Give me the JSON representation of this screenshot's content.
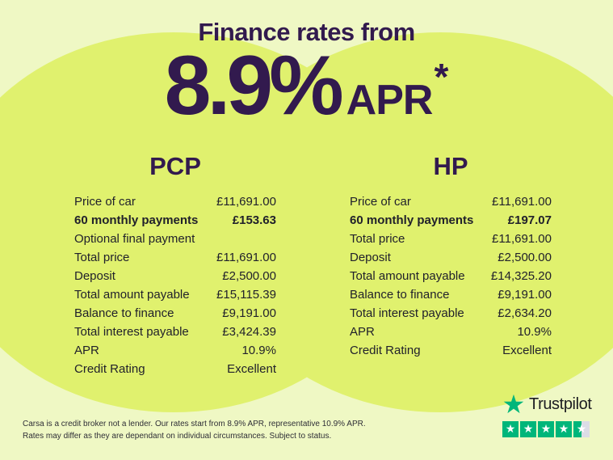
{
  "header": {
    "title": "Finance rates from",
    "rate_value": "8.9%",
    "rate_unit": "APR",
    "rate_footnote": "*"
  },
  "pcp": {
    "title": "PCP",
    "rows": [
      {
        "label": "Price of car",
        "value": "£11,691.00"
      },
      {
        "label": "60 monthly payments",
        "value": "£153.63",
        "bold": true
      },
      {
        "label": "Optional final payment",
        "value": ""
      },
      {
        "label": "Total price",
        "value": "£11,691.00"
      },
      {
        "label": "Deposit",
        "value": "£2,500.00"
      },
      {
        "label": "Total amount payable",
        "value": "£15,115.39"
      },
      {
        "label": "Balance to finance",
        "value": "£9,191.00"
      },
      {
        "label": "Total interest payable",
        "value": "£3,424.39"
      },
      {
        "label": "APR",
        "value": "10.9%"
      },
      {
        "label": "Credit Rating",
        "value": "Excellent"
      }
    ]
  },
  "hp": {
    "title": "HP",
    "rows": [
      {
        "label": "Price of car",
        "value": "£11,691.00"
      },
      {
        "label": "60 monthly payments",
        "value": "£197.07",
        "bold": true
      },
      {
        "label": "Total price",
        "value": "£11,691.00"
      },
      {
        "label": "Deposit",
        "value": "£2,500.00"
      },
      {
        "label": "Total amount payable",
        "value": "£14,325.20"
      },
      {
        "label": "Balance to finance",
        "value": "£9,191.00"
      },
      {
        "label": "Total interest payable",
        "value": "£2,634.20"
      },
      {
        "label": "APR",
        "value": "10.9%"
      },
      {
        "label": "Credit Rating",
        "value": "Excellent"
      }
    ]
  },
  "disclaimer": {
    "line1": "Carsa is a credit broker not a lender. Our rates start from 8.9% APR, representative 10.9% APR.",
    "line2": "Rates may differ as they are dependant on individual circumstances. Subject to status."
  },
  "trustpilot": {
    "brand": "Trustpilot",
    "rating": 4.5,
    "star_glyph": "★"
  },
  "colors": {
    "background": "#eff8c4",
    "blob": "#e0f16e",
    "purple": "#321a4e",
    "body_text": "#21212b",
    "trustpilot_green": "#00b67a",
    "star_inactive": "#dcdce6"
  }
}
